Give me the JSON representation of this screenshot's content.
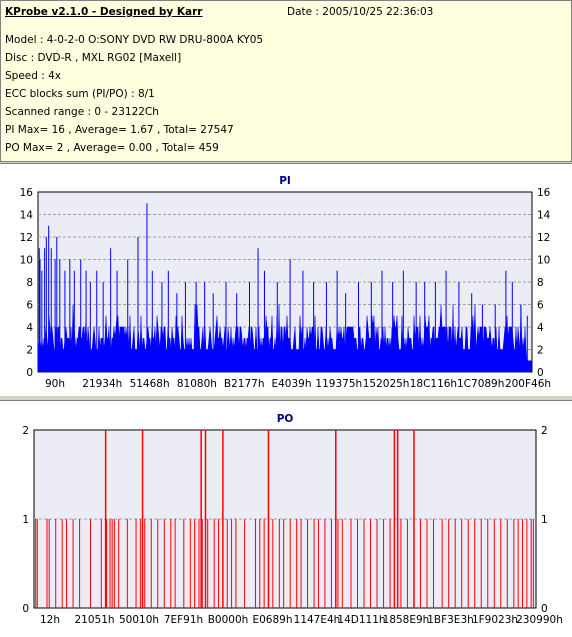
{
  "info": {
    "title": "KProbe v2.1.0 - Designed by Karr",
    "date": "Date : 2005/10/25 22:36:03",
    "lines": [
      "Model : 4-0-2-0 O:SONY    DVD RW DRU-800A  KY05",
      "Disc : DVD-R , MXL RG02 [Maxell]",
      "Speed : 4x",
      "ECC blocks sum (PI/PO) : 8/1",
      "Scanned range : 0 - 23122Ch",
      "PI Max= 16 , Average= 1.67 , Total= 27547",
      "PO Max= 2 , Average= 0.00 , Total= 459"
    ]
  },
  "colors": {
    "pi_fill": "#0000ff",
    "po_line": "#ff0000",
    "plot_bg": "#ececf6",
    "title": "#000080"
  },
  "chart_data": [
    {
      "type": "bar",
      "title": "PI",
      "ylim": [
        0,
        16
      ],
      "yticks": [
        0,
        2,
        4,
        6,
        8,
        10,
        12,
        14,
        16
      ],
      "xticks": [
        "90h",
        "21934h",
        "51468h",
        "81080h",
        "B2177h",
        "E4039h",
        "119375h",
        "152025h",
        "18C116h",
        "1C7089h",
        "200F46h"
      ],
      "xrange": [
        0,
        23122
      ],
      "max": 16,
      "average": 1.67,
      "total": 27547,
      "spikes": [
        {
          "x": 60,
          "y": 11
        },
        {
          "x": 95,
          "y": 10
        },
        {
          "x": 180,
          "y": 9
        },
        {
          "x": 310,
          "y": 11
        },
        {
          "x": 390,
          "y": 12
        },
        {
          "x": 500,
          "y": 13
        },
        {
          "x": 620,
          "y": 11
        },
        {
          "x": 800,
          "y": 10
        },
        {
          "x": 880,
          "y": 12
        },
        {
          "x": 1020,
          "y": 10
        },
        {
          "x": 1260,
          "y": 9
        },
        {
          "x": 1490,
          "y": 10
        },
        {
          "x": 1700,
          "y": 9
        },
        {
          "x": 2000,
          "y": 10
        },
        {
          "x": 2250,
          "y": 9
        },
        {
          "x": 2450,
          "y": 8
        },
        {
          "x": 2750,
          "y": 9
        },
        {
          "x": 3050,
          "y": 8
        },
        {
          "x": 3400,
          "y": 11
        },
        {
          "x": 3700,
          "y": 9
        },
        {
          "x": 4200,
          "y": 10
        },
        {
          "x": 4680,
          "y": 12
        },
        {
          "x": 5100,
          "y": 15
        },
        {
          "x": 5350,
          "y": 9
        },
        {
          "x": 5800,
          "y": 8
        },
        {
          "x": 6100,
          "y": 9
        },
        {
          "x": 6500,
          "y": 7
        },
        {
          "x": 6900,
          "y": 8
        },
        {
          "x": 7400,
          "y": 8
        },
        {
          "x": 7800,
          "y": 8
        },
        {
          "x": 8200,
          "y": 7
        },
        {
          "x": 8800,
          "y": 8
        },
        {
          "x": 9300,
          "y": 7
        },
        {
          "x": 9900,
          "y": 8
        },
        {
          "x": 10300,
          "y": 11
        },
        {
          "x": 10600,
          "y": 9
        },
        {
          "x": 11200,
          "y": 8
        },
        {
          "x": 11800,
          "y": 10
        },
        {
          "x": 12400,
          "y": 9
        },
        {
          "x": 12900,
          "y": 8
        },
        {
          "x": 13500,
          "y": 8
        },
        {
          "x": 14000,
          "y": 9
        },
        {
          "x": 14400,
          "y": 7
        },
        {
          "x": 15000,
          "y": 8
        },
        {
          "x": 15600,
          "y": 8
        },
        {
          "x": 16100,
          "y": 9
        },
        {
          "x": 16600,
          "y": 8
        },
        {
          "x": 17100,
          "y": 9
        },
        {
          "x": 17700,
          "y": 8
        },
        {
          "x": 18100,
          "y": 8
        },
        {
          "x": 18600,
          "y": 8
        },
        {
          "x": 19100,
          "y": 9
        },
        {
          "x": 19700,
          "y": 8
        },
        {
          "x": 20300,
          "y": 7
        },
        {
          "x": 20800,
          "y": 6
        },
        {
          "x": 21400,
          "y": 6
        },
        {
          "x": 21900,
          "y": 9
        },
        {
          "x": 22200,
          "y": 8
        },
        {
          "x": 22600,
          "y": 6
        },
        {
          "x": 22900,
          "y": 5
        }
      ]
    },
    {
      "type": "bar",
      "title": "PO",
      "ylim": [
        0,
        2
      ],
      "yticks": [
        0,
        1,
        2
      ],
      "xticks": [
        "12h",
        "21051h",
        "50010h",
        "7EF91h",
        "B0000h",
        "E0689h",
        "1147E4h",
        "14D111h",
        "1858E9h",
        "1BF3E3h",
        "1F9023h",
        "230990h"
      ],
      "xrange": [
        0,
        23122
      ],
      "max": 2,
      "average": 0.0,
      "total": 459,
      "twos": [
        3300,
        5000,
        7700,
        7900,
        8700,
        10800,
        13900,
        16600,
        16750,
        17500
      ],
      "ones": [
        80,
        150,
        600,
        700,
        1000,
        1300,
        1500,
        1800,
        2100,
        2600,
        3100,
        3350,
        3500,
        3600,
        3700,
        3900,
        4300,
        4700,
        4900,
        5100,
        5400,
        5700,
        6000,
        6300,
        6500,
        6900,
        7200,
        7400,
        7600,
        7750,
        8000,
        8300,
        8500,
        8900,
        9100,
        9300,
        9700,
        10200,
        10400,
        10600,
        11000,
        11300,
        11500,
        11800,
        12100,
        12300,
        12600,
        12900,
        13100,
        13400,
        13700,
        14000,
        14200,
        14600,
        14900,
        15200,
        15500,
        15800,
        16100,
        16400,
        16900,
        17200,
        17800,
        18100,
        18400,
        18800,
        19100,
        19400,
        19700,
        20000,
        20300,
        20600,
        20900,
        21200,
        21500,
        21800,
        22100,
        22300,
        22500,
        22700,
        22900,
        23000
      ]
    }
  ]
}
